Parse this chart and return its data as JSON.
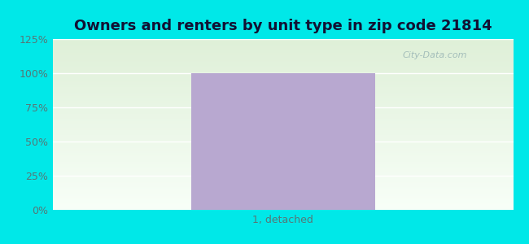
{
  "title": "Owners and renters by unit type in zip code 21814",
  "categories": [
    "1, detached"
  ],
  "values": [
    100
  ],
  "bar_color": "#b8a8d0",
  "ylim": [
    0,
    125
  ],
  "yticks": [
    0,
    25,
    50,
    75,
    100,
    125
  ],
  "ytick_labels": [
    "0%",
    "25%",
    "50%",
    "75%",
    "100%",
    "125%"
  ],
  "title_fontsize": 13,
  "tick_fontsize": 9,
  "xtick_fontsize": 9,
  "outer_bg_color": "#00e8e8",
  "plot_bg_color_top": "#dff0d8",
  "plot_bg_color_bottom": "#f8fff8",
  "watermark": "City-Data.com",
  "ytick_color": "#557777",
  "xtick_color": "#557777",
  "title_color": "#111133",
  "grid_color": "#ffffff",
  "grid_linewidth": 1.0
}
